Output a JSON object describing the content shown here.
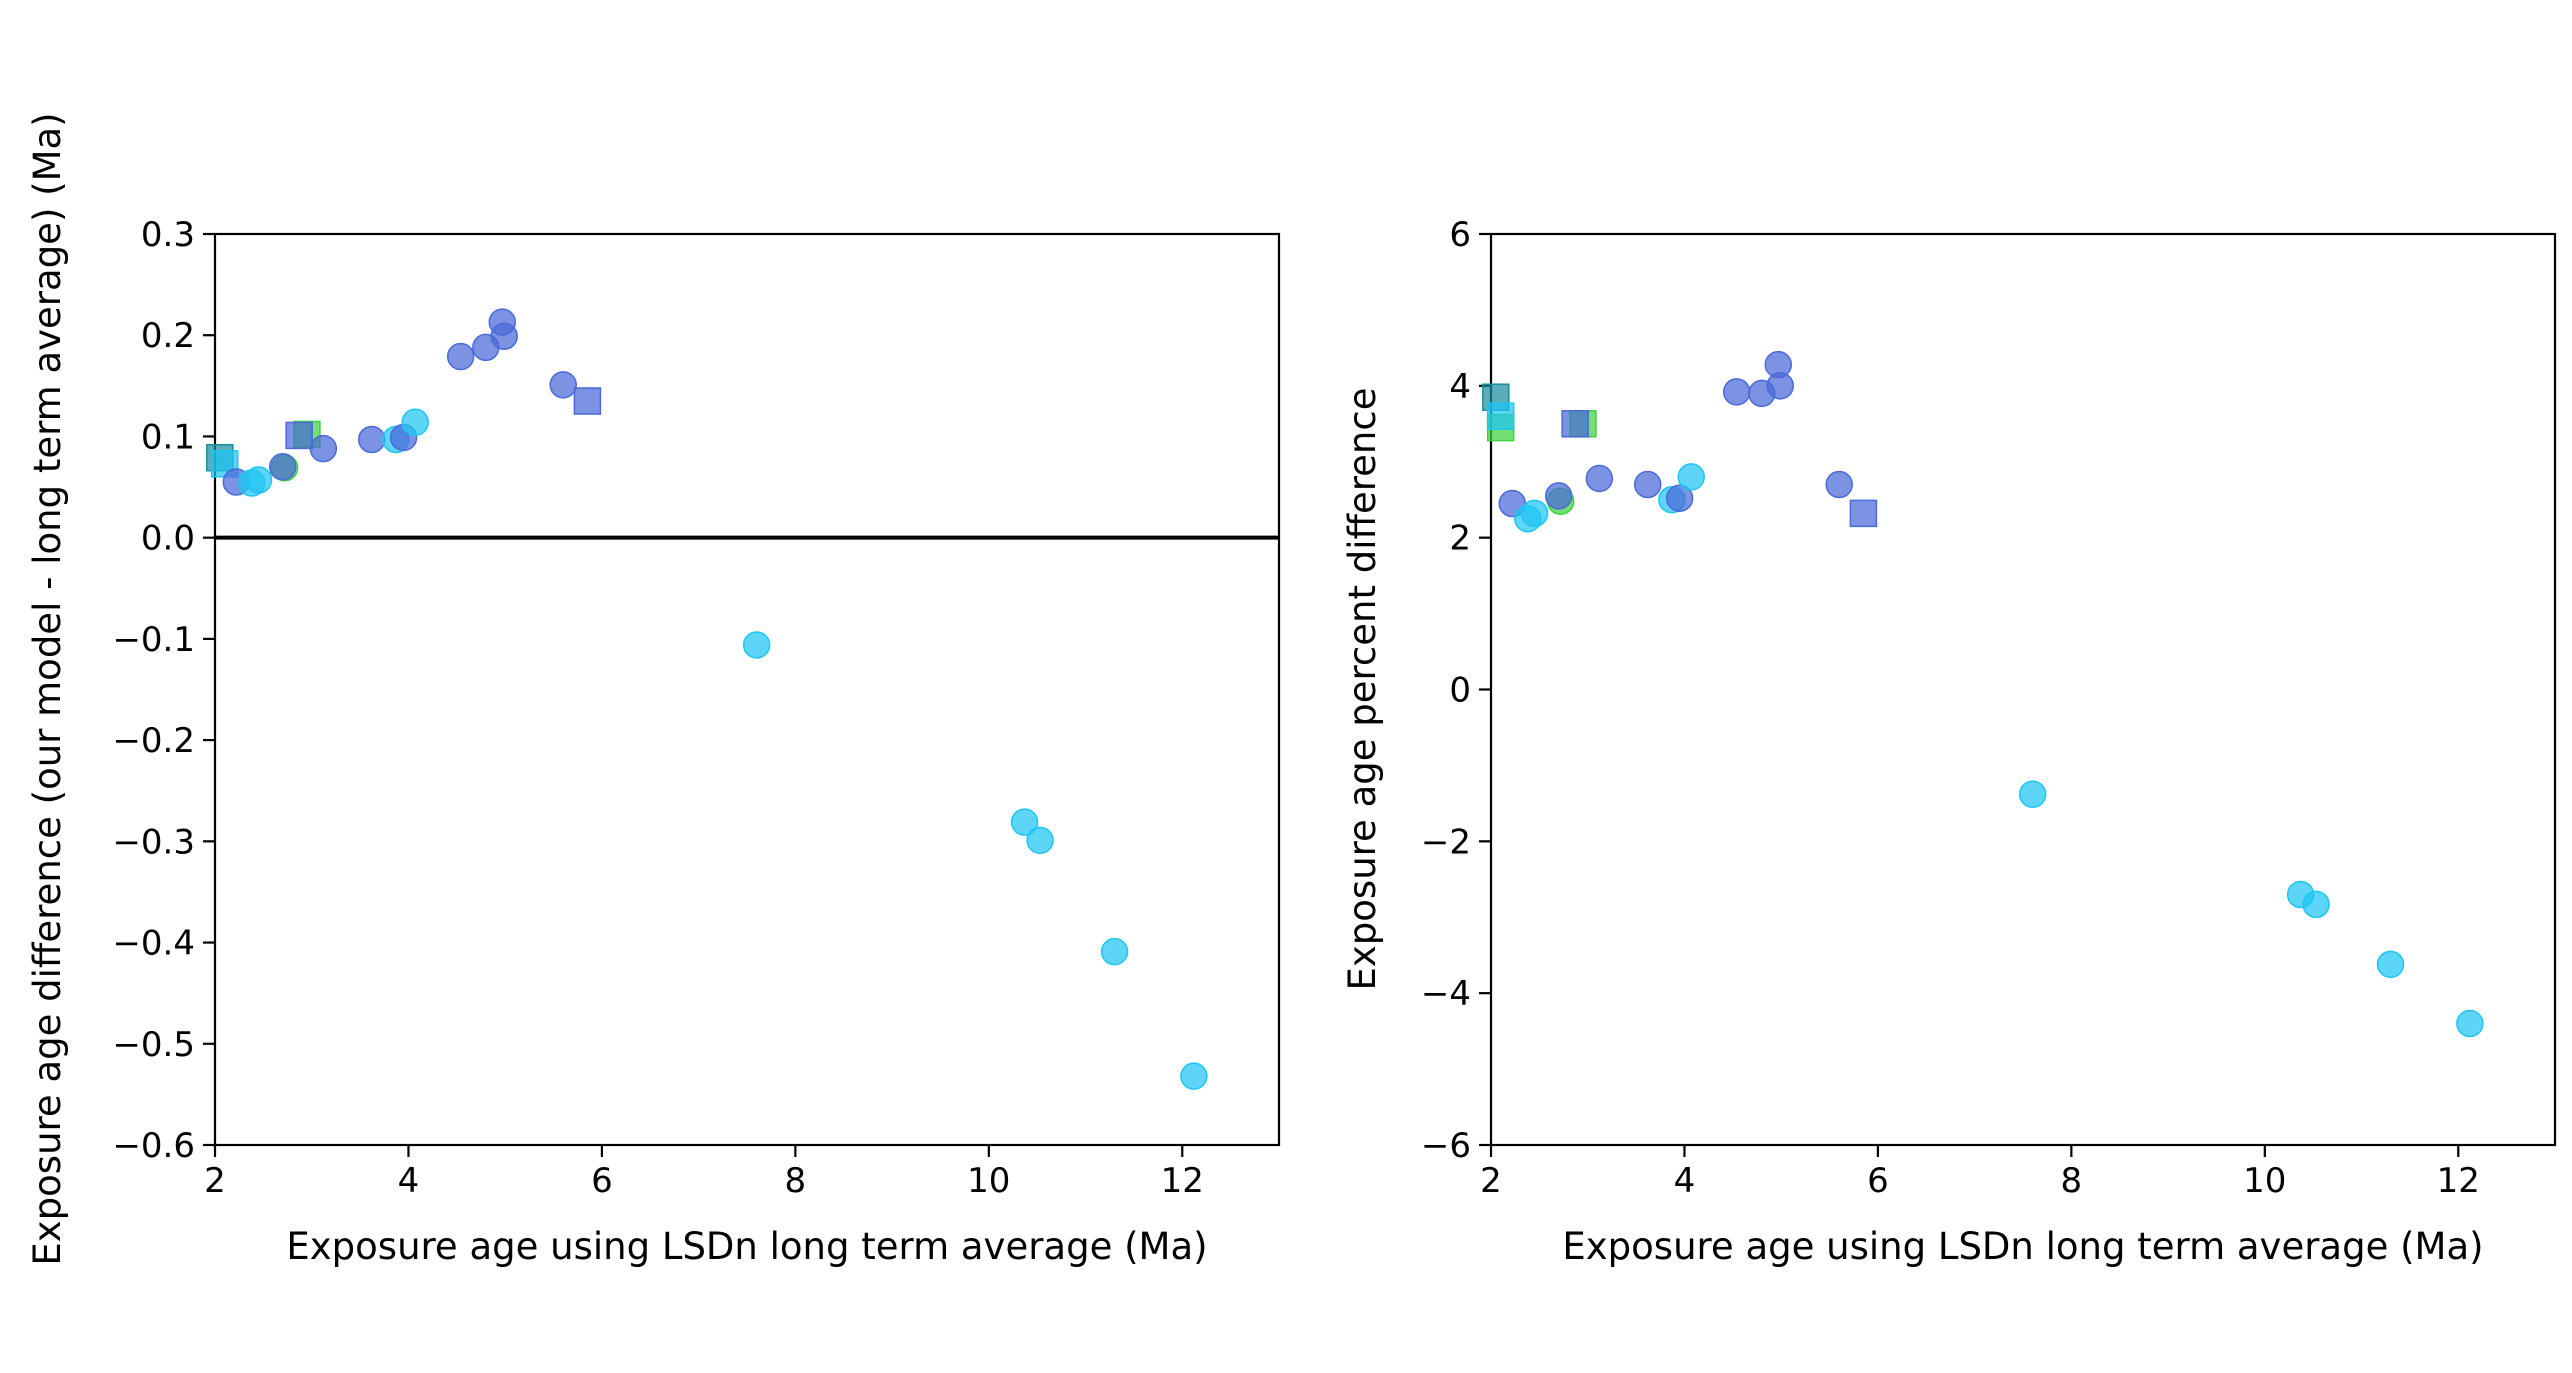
{
  "colors": {
    "blue": "#4a6ad8",
    "cyan": "#1fc5f2",
    "green": "#3fd23f",
    "teal": "#1a8fa0",
    "point_alpha": 0.72
  },
  "chart_data": [
    {
      "type": "scatter",
      "title": "",
      "xlabel": "Exposure age using LSDn long term average (Ma)",
      "ylabel": "Exposure age difference (our model - long term average) (Ma)",
      "xlim": [
        2,
        13
      ],
      "ylim": [
        -0.6,
        0.3
      ],
      "xticks": [
        2,
        4,
        6,
        8,
        10,
        12
      ],
      "yticks": [
        0.3,
        0.2,
        0.1,
        0.0,
        -0.1,
        -0.2,
        -0.3,
        -0.4,
        -0.5,
        -0.6
      ],
      "ytick_labels": [
        "0.3",
        "0.2",
        "0.1",
        "0.0",
        "−0.1",
        "−0.2",
        "−0.3",
        "−0.4",
        "−0.5",
        "−0.6"
      ],
      "xtick_labels": [
        "2",
        "4",
        "6",
        "8",
        "10",
        "12"
      ],
      "hline": 0,
      "legend": "none",
      "grid": false,
      "points": [
        {
          "x": 2.05,
          "y": 0.079,
          "marker": "square",
          "color": "teal"
        },
        {
          "x": 2.1,
          "y": 0.073,
          "marker": "square",
          "color": "cyan"
        },
        {
          "x": 2.22,
          "y": 0.055,
          "marker": "circle",
          "color": "blue"
        },
        {
          "x": 2.38,
          "y": 0.054,
          "marker": "circle",
          "color": "cyan"
        },
        {
          "x": 2.45,
          "y": 0.057,
          "marker": "circle",
          "color": "cyan"
        },
        {
          "x": 2.72,
          "y": 0.069,
          "marker": "circle",
          "color": "green"
        },
        {
          "x": 2.7,
          "y": 0.07,
          "marker": "circle",
          "color": "blue"
        },
        {
          "x": 2.95,
          "y": 0.102,
          "marker": "square",
          "color": "green"
        },
        {
          "x": 2.87,
          "y": 0.101,
          "marker": "square",
          "color": "blue"
        },
        {
          "x": 3.12,
          "y": 0.088,
          "marker": "circle",
          "color": "blue"
        },
        {
          "x": 3.62,
          "y": 0.097,
          "marker": "circle",
          "color": "blue"
        },
        {
          "x": 3.87,
          "y": 0.097,
          "marker": "circle",
          "color": "cyan"
        },
        {
          "x": 3.95,
          "y": 0.099,
          "marker": "circle",
          "color": "blue"
        },
        {
          "x": 4.07,
          "y": 0.114,
          "marker": "circle",
          "color": "cyan"
        },
        {
          "x": 4.54,
          "y": 0.179,
          "marker": "circle",
          "color": "blue"
        },
        {
          "x": 4.8,
          "y": 0.188,
          "marker": "circle",
          "color": "blue"
        },
        {
          "x": 4.97,
          "y": 0.213,
          "marker": "circle",
          "color": "blue"
        },
        {
          "x": 4.99,
          "y": 0.199,
          "marker": "circle",
          "color": "blue"
        },
        {
          "x": 5.6,
          "y": 0.151,
          "marker": "circle",
          "color": "blue"
        },
        {
          "x": 5.85,
          "y": 0.135,
          "marker": "square",
          "color": "blue"
        },
        {
          "x": 7.6,
          "y": -0.106,
          "marker": "circle",
          "color": "cyan"
        },
        {
          "x": 10.37,
          "y": -0.281,
          "marker": "circle",
          "color": "cyan"
        },
        {
          "x": 10.53,
          "y": -0.299,
          "marker": "circle",
          "color": "cyan"
        },
        {
          "x": 11.3,
          "y": -0.409,
          "marker": "circle",
          "color": "cyan"
        },
        {
          "x": 12.12,
          "y": -0.532,
          "marker": "circle",
          "color": "cyan"
        }
      ]
    },
    {
      "type": "scatter",
      "title": "",
      "xlabel": "Exposure age using LSDn long term average (Ma)",
      "ylabel": "Exposure age percent difference",
      "xlim": [
        2,
        13
      ],
      "ylim": [
        -6,
        6
      ],
      "xticks": [
        2,
        4,
        6,
        8,
        10,
        12
      ],
      "yticks": [
        6,
        4,
        2,
        0,
        -2,
        -4,
        -6
      ],
      "ytick_labels": [
        "6",
        "4",
        "2",
        "0",
        "−2",
        "−4",
        "−6"
      ],
      "xtick_labels": [
        "2",
        "4",
        "6",
        "8",
        "10",
        "12"
      ],
      "legend": "none",
      "grid": false,
      "points": [
        {
          "x": 2.05,
          "y": 3.85,
          "marker": "square",
          "color": "teal"
        },
        {
          "x": 2.1,
          "y": 3.45,
          "marker": "square",
          "color": "green"
        },
        {
          "x": 2.1,
          "y": 3.6,
          "marker": "square",
          "color": "cyan"
        },
        {
          "x": 2.22,
          "y": 2.45,
          "marker": "circle",
          "color": "blue"
        },
        {
          "x": 2.38,
          "y": 2.25,
          "marker": "circle",
          "color": "cyan"
        },
        {
          "x": 2.45,
          "y": 2.32,
          "marker": "circle",
          "color": "cyan"
        },
        {
          "x": 2.72,
          "y": 2.48,
          "marker": "circle",
          "color": "green"
        },
        {
          "x": 2.7,
          "y": 2.55,
          "marker": "circle",
          "color": "blue"
        },
        {
          "x": 2.95,
          "y": 3.5,
          "marker": "square",
          "color": "green"
        },
        {
          "x": 2.87,
          "y": 3.5,
          "marker": "square",
          "color": "blue"
        },
        {
          "x": 3.12,
          "y": 2.78,
          "marker": "circle",
          "color": "blue"
        },
        {
          "x": 3.62,
          "y": 2.7,
          "marker": "circle",
          "color": "blue"
        },
        {
          "x": 3.87,
          "y": 2.5,
          "marker": "circle",
          "color": "cyan"
        },
        {
          "x": 3.95,
          "y": 2.52,
          "marker": "circle",
          "color": "blue"
        },
        {
          "x": 4.07,
          "y": 2.8,
          "marker": "circle",
          "color": "cyan"
        },
        {
          "x": 4.54,
          "y": 3.92,
          "marker": "circle",
          "color": "blue"
        },
        {
          "x": 4.8,
          "y": 3.9,
          "marker": "circle",
          "color": "blue"
        },
        {
          "x": 4.97,
          "y": 4.28,
          "marker": "circle",
          "color": "blue"
        },
        {
          "x": 4.99,
          "y": 4.0,
          "marker": "circle",
          "color": "blue"
        },
        {
          "x": 5.6,
          "y": 2.7,
          "marker": "circle",
          "color": "blue"
        },
        {
          "x": 5.85,
          "y": 2.32,
          "marker": "square",
          "color": "blue"
        },
        {
          "x": 7.6,
          "y": -1.38,
          "marker": "circle",
          "color": "cyan"
        },
        {
          "x": 10.37,
          "y": -2.7,
          "marker": "circle",
          "color": "cyan"
        },
        {
          "x": 10.53,
          "y": -2.83,
          "marker": "circle",
          "color": "cyan"
        },
        {
          "x": 11.3,
          "y": -3.62,
          "marker": "circle",
          "color": "cyan"
        },
        {
          "x": 12.12,
          "y": -4.4,
          "marker": "circle",
          "color": "cyan"
        }
      ]
    }
  ]
}
